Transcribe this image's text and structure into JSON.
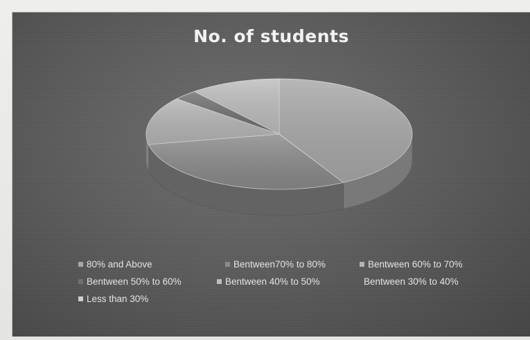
{
  "chart_data": {
    "type": "pie",
    "title": "No. of students",
    "categories": [
      "80% and Above",
      "Bentween70% to 80%",
      "Bentween 60% to 70%",
      "Bentween 50% to 60%",
      "Bentween 40% to 50%",
      "Bentween 30% to 40%",
      "Less than 30%"
    ],
    "values": [
      42,
      30,
      14,
      3,
      11,
      0,
      0
    ],
    "value_unit": "percent of pie (estimated)",
    "legend": "bottom",
    "colors": [
      "#a8a8a8",
      "#8a8a8a",
      "#b5b5b5",
      "#707070",
      "#bdbdbd",
      "#5a5a5a",
      "#cfcfcf"
    ]
  }
}
